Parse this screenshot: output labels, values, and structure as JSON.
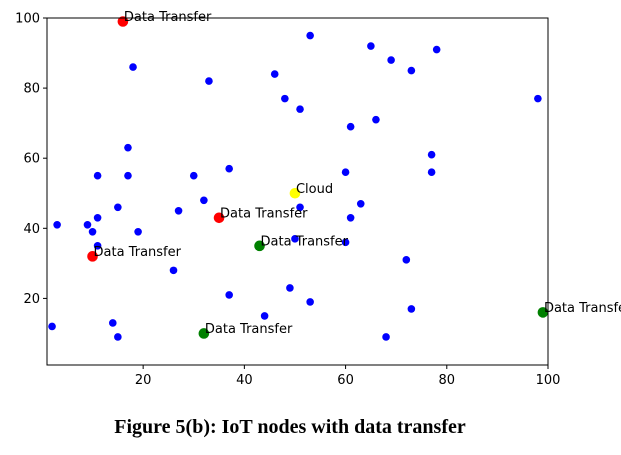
{
  "caption": "Figure 5(b): IoT nodes with data transfer",
  "chart_data": {
    "type": "scatter",
    "xlim": [
      1,
      100
    ],
    "ylim": [
      1,
      100
    ],
    "xticks": [
      20,
      40,
      60,
      80,
      100
    ],
    "yticks": [
      20,
      40,
      60,
      80,
      100
    ],
    "grid": false,
    "series": [
      {
        "color": "#0000ff",
        "points": [
          [
            2,
            12
          ],
          [
            3,
            41
          ],
          [
            9,
            41
          ],
          [
            10,
            39
          ],
          [
            11,
            55
          ],
          [
            11,
            35
          ],
          [
            11,
            43
          ],
          [
            14,
            13
          ],
          [
            15,
            9
          ],
          [
            15,
            46
          ],
          [
            17,
            63
          ],
          [
            17,
            55
          ],
          [
            18,
            86
          ],
          [
            19,
            39
          ],
          [
            26,
            28
          ],
          [
            27,
            45
          ],
          [
            30,
            55
          ],
          [
            32,
            48
          ],
          [
            33,
            82
          ],
          [
            37,
            57
          ],
          [
            37,
            21
          ],
          [
            44,
            15
          ],
          [
            46,
            84
          ],
          [
            48,
            77
          ],
          [
            49,
            23
          ],
          [
            50,
            37
          ],
          [
            51,
            74
          ],
          [
            51,
            46
          ],
          [
            53,
            95
          ],
          [
            53,
            19
          ],
          [
            60,
            36
          ],
          [
            60,
            56
          ],
          [
            61,
            69
          ],
          [
            61,
            43
          ],
          [
            63,
            47
          ],
          [
            65,
            92
          ],
          [
            66,
            71
          ],
          [
            68,
            9
          ],
          [
            69,
            88
          ],
          [
            72,
            31
          ],
          [
            73,
            85
          ],
          [
            73,
            17
          ],
          [
            77,
            61
          ],
          [
            77,
            56
          ],
          [
            78,
            91
          ],
          [
            98,
            77
          ]
        ]
      },
      {
        "color": "#ff0000",
        "points": [
          {
            "x": 16,
            "y": 99,
            "label": "Data Transfer"
          },
          {
            "x": 35,
            "y": 43,
            "label": "Data Transfer"
          },
          {
            "x": 10,
            "y": 32,
            "label": "Data Transfer"
          }
        ]
      },
      {
        "color": "#008000",
        "points": [
          {
            "x": 43,
            "y": 35,
            "label": "Data Transfer"
          },
          {
            "x": 32,
            "y": 10,
            "label": "Data Transfer"
          },
          {
            "x": 99,
            "y": 16,
            "label": "Data Transfer"
          }
        ]
      },
      {
        "color": "#ffff00",
        "points": [
          {
            "x": 50,
            "y": 50,
            "label": "Cloud"
          }
        ]
      }
    ]
  }
}
